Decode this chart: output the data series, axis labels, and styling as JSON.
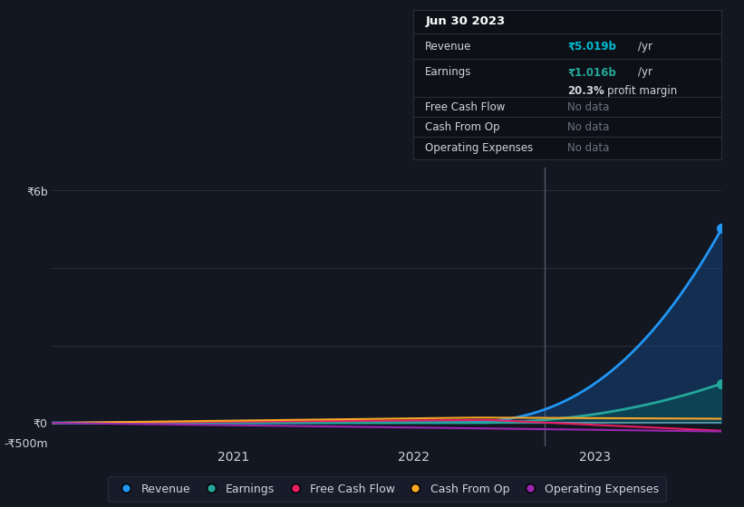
{
  "bg_color": "#131722",
  "plot_bg_color": "#131722",
  "grid_color": "#2a2e39",
  "text_color": "#d1d4dc",
  "zero_line_color": "#ffffff",
  "vline_color": "#555566",
  "legend_items": [
    {
      "label": "Revenue",
      "color": "#2196f3"
    },
    {
      "label": "Earnings",
      "color": "#26a69a"
    },
    {
      "label": "Free Cash Flow",
      "color": "#e91e63"
    },
    {
      "label": "Cash From Op",
      "color": "#f9a825"
    },
    {
      "label": "Operating Expenses",
      "color": "#9c27b0"
    }
  ],
  "revenue_color": "#2196f3",
  "earnings_color": "#26a69a",
  "fcf_color": "#e91e63",
  "cashop_color": "#f9a825",
  "opex_color": "#9c27b0",
  "revenue_fill_color": "#1565c0",
  "earnings_fill_color": "#00695c",
  "tooltip_bg": "#0d1117",
  "tooltip_border": "#2a2e39",
  "tooltip_title": "Jun 30 2023",
  "tooltip_revenue_val": "₹5.019b",
  "tooltip_revenue_color": "#00bcd4",
  "tooltip_earnings_val": "₹1.016b",
  "tooltip_earnings_color": "#26a69a",
  "tooltip_margin": "20.3%",
  "tooltip_no_data": "No data",
  "tooltip_no_data_color": "#6b7280",
  "xticklabels": [
    "2021",
    "2022",
    "2023"
  ],
  "ytick_labels": [
    "-₹500m",
    "₹0",
    "₹6b"
  ],
  "ytick_values": [
    -500000000,
    0,
    6000000000
  ]
}
